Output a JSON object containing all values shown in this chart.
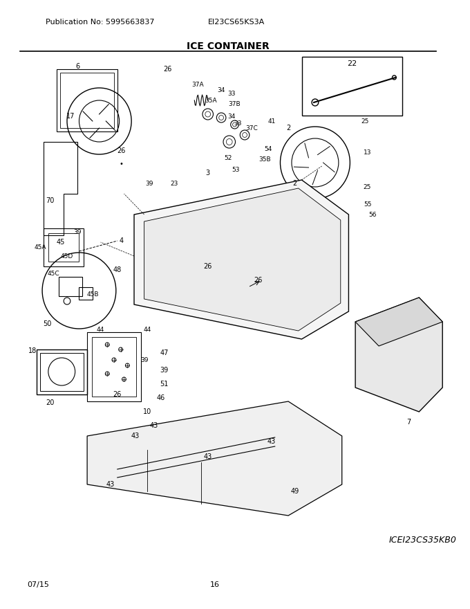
{
  "title": "ICE CONTAINER",
  "pub_no": "Publication No: 5995663837",
  "model": "EI23CS65KS3A",
  "date": "07/15",
  "page": "16",
  "part_code": "ICEI23CS35KB0",
  "bg_color": "#ffffff",
  "line_color": "#000000",
  "text_color": "#000000",
  "fig_width": 6.8,
  "fig_height": 8.8,
  "dpi": 100
}
